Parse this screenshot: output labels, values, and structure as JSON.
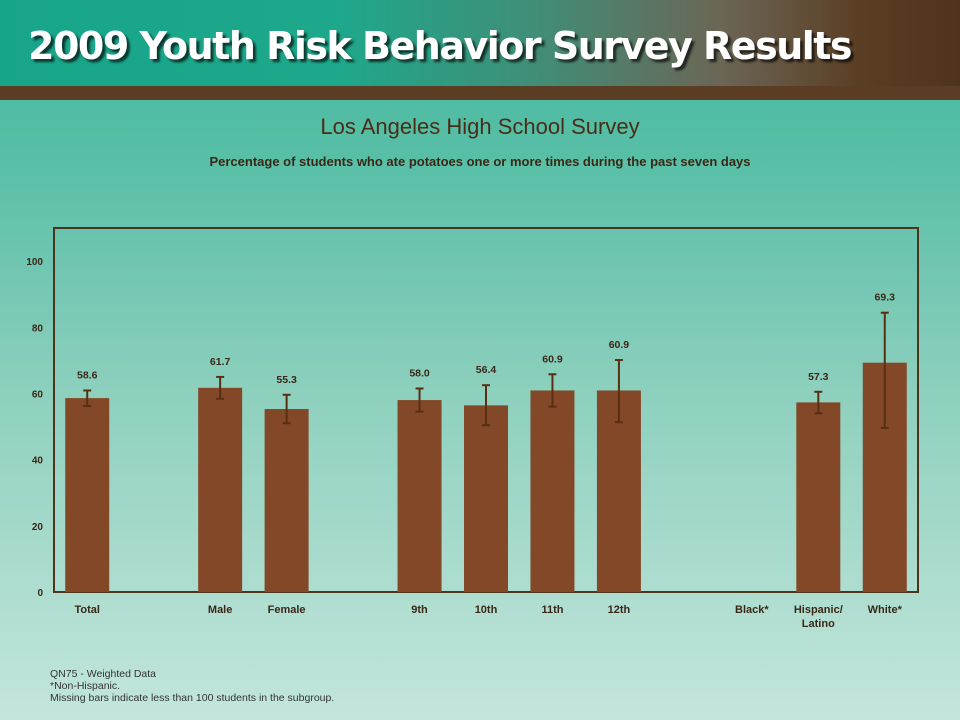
{
  "header": {
    "banner_title": "2009 Youth Risk Behavior Survey Results"
  },
  "colors": {
    "bar": "#834827",
    "error_bar": "#5a2e12",
    "axis_frame": "#4f341c",
    "label_text": "#3a2817"
  },
  "chart_data": {
    "type": "bar",
    "title": "Los Angeles High School Survey",
    "subtitle": "Percentage of students who ate potatoes one or more times during the past seven days",
    "xlabel": "",
    "ylabel": "",
    "ylim": [
      0,
      110
    ],
    "yticks": [
      0,
      20,
      40,
      60,
      80,
      100
    ],
    "grid": false,
    "categories": [
      "Total",
      "",
      "Male",
      "Female",
      "",
      "9th",
      "10th",
      "11th",
      "12th",
      "",
      "Black*",
      "Hispanic/ Latino",
      "White*"
    ],
    "values": [
      58.6,
      null,
      61.7,
      55.3,
      null,
      58.0,
      56.4,
      60.9,
      60.9,
      null,
      null,
      57.3,
      69.3
    ],
    "value_labels": [
      "58.6",
      "",
      "61.7",
      "55.3",
      "",
      "58.0",
      "56.4",
      "60.9",
      "60.9",
      "",
      "",
      "57.3",
      "69.3"
    ],
    "ci_lower": [
      56.2,
      null,
      58.4,
      51.0,
      null,
      54.5,
      50.4,
      56.0,
      51.3,
      null,
      null,
      54.0,
      49.6
    ],
    "ci_upper": [
      60.9,
      null,
      65.0,
      59.6,
      null,
      61.5,
      62.5,
      65.8,
      70.1,
      null,
      null,
      60.5,
      84.4
    ]
  },
  "footnotes": {
    "line1": "QN75 - Weighted Data",
    "line2": "*Non-Hispanic.",
    "line3": "Missing bars indicate less than 100 students in the subgroup."
  }
}
